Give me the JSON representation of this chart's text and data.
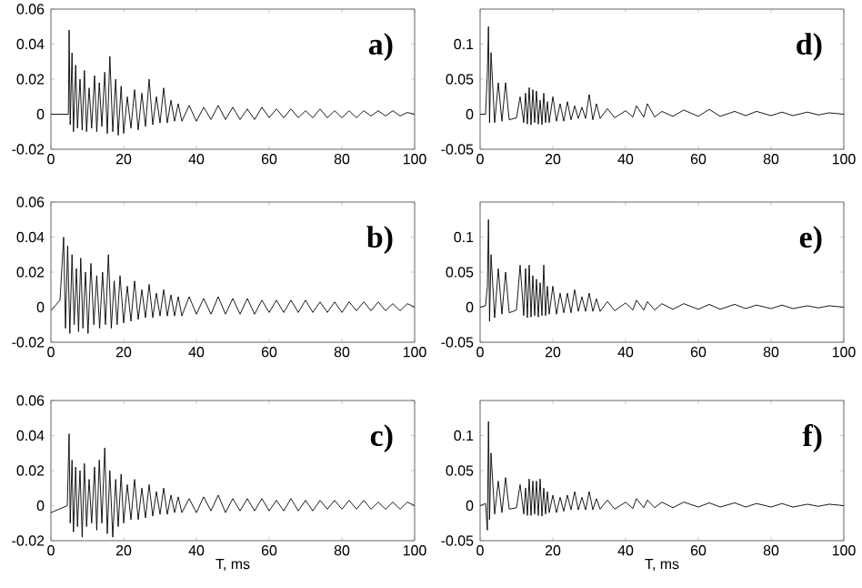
{
  "chart_data": [
    {
      "type": "line",
      "annotations": [
        "a)"
      ],
      "xlim": [
        0,
        100
      ],
      "ylim": [
        -0.02,
        0.06
      ],
      "xticks": [
        0,
        20,
        40,
        60,
        80,
        100
      ],
      "yticks": [
        -0.02,
        0,
        0.02,
        0.04,
        0.06
      ],
      "marker": "none",
      "line_style": "solid",
      "series": [
        {
          "color": "#000000",
          "x": [
            0,
            4.8,
            5,
            5.3,
            5.8,
            6.2,
            6.8,
            7.3,
            8,
            8.6,
            9.2,
            9.8,
            10.5,
            11.2,
            12,
            12.6,
            13.3,
            14,
            14.8,
            15.5,
            16.2,
            17,
            17.8,
            18.5,
            19.3,
            20,
            21,
            22,
            23,
            24,
            25,
            26,
            27,
            28,
            29,
            30,
            31,
            32,
            33,
            34,
            35,
            36,
            38,
            40,
            42,
            44,
            46,
            48,
            50,
            52,
            54,
            56,
            58,
            60,
            62,
            64,
            66,
            68,
            70,
            72,
            74,
            76,
            78,
            80,
            82,
            84,
            86,
            88,
            90,
            92,
            94,
            96,
            98,
            100
          ],
          "values": [
            0,
            0,
            0.048,
            -0.006,
            0.035,
            -0.01,
            0.028,
            -0.008,
            0.02,
            -0.009,
            0.025,
            -0.01,
            0.015,
            -0.008,
            0.022,
            -0.01,
            0.018,
            -0.007,
            0.024,
            -0.011,
            0.033,
            -0.01,
            0.02,
            -0.012,
            0.016,
            -0.011,
            0.01,
            -0.008,
            0.014,
            -0.009,
            0.012,
            -0.007,
            0.02,
            -0.006,
            0.01,
            -0.005,
            0.015,
            -0.005,
            0.008,
            -0.004,
            0.006,
            -0.004,
            0.005,
            -0.004,
            0.004,
            -0.003,
            0.005,
            -0.003,
            0.004,
            -0.003,
            0.003,
            -0.003,
            0.004,
            -0.002,
            0.003,
            -0.002,
            0.003,
            -0.002,
            0.002,
            -0.002,
            0.003,
            -0.002,
            0.002,
            -0.002,
            0.002,
            -0.002,
            0.002,
            -0.001,
            0.002,
            -0.001,
            0.002,
            -0.001,
            0.001,
            0
          ]
        }
      ]
    },
    {
      "type": "line",
      "annotations": [
        "d)"
      ],
      "xlim": [
        0,
        100
      ],
      "ylim": [
        -0.05,
        0.15
      ],
      "xticks": [
        0,
        20,
        40,
        60,
        80,
        100
      ],
      "yticks": [
        -0.05,
        0,
        0.05,
        0.1
      ],
      "marker": "none",
      "line_style": "solid",
      "series": [
        {
          "color": "#000000",
          "x": [
            0,
            1.5,
            2,
            2.3,
            2.6,
            3,
            4,
            5,
            6,
            7,
            8,
            10,
            11,
            12,
            12.5,
            13,
            13.5,
            14,
            14.5,
            15,
            15.5,
            16,
            16.5,
            17,
            17.5,
            18,
            18.5,
            19,
            20,
            21,
            22,
            23,
            24,
            25,
            26,
            27,
            28,
            29,
            30,
            31,
            32,
            33,
            35,
            37,
            40,
            42,
            43,
            45,
            46,
            48,
            50,
            53,
            56,
            60,
            63,
            66,
            70,
            73,
            76,
            80,
            83,
            86,
            90,
            93,
            96,
            100
          ],
          "values": [
            0,
            0,
            0.06,
            0.125,
            -0.012,
            0.088,
            -0.012,
            0.045,
            -0.01,
            0.045,
            -0.008,
            -0.005,
            0.025,
            -0.012,
            0.03,
            -0.014,
            0.038,
            -0.015,
            0.035,
            -0.012,
            0.033,
            -0.014,
            0.02,
            -0.015,
            0.03,
            -0.012,
            0.018,
            -0.012,
            0.025,
            -0.01,
            0.015,
            -0.01,
            0.018,
            -0.008,
            0.012,
            -0.006,
            0.01,
            -0.006,
            0.028,
            -0.008,
            0.015,
            -0.006,
            0.008,
            -0.005,
            0.005,
            -0.004,
            0.012,
            -0.004,
            0.015,
            -0.004,
            0.004,
            -0.003,
            0.006,
            -0.003,
            0.007,
            -0.003,
            0.004,
            -0.002,
            0.004,
            -0.002,
            0.003,
            -0.002,
            0.003,
            -0.001,
            0.002,
            0
          ]
        }
      ]
    },
    {
      "type": "line",
      "annotations": [
        "b)"
      ],
      "xlim": [
        0,
        100
      ],
      "ylim": [
        -0.02,
        0.06
      ],
      "xticks": [
        0,
        20,
        40,
        60,
        80,
        100
      ],
      "yticks": [
        -0.02,
        0,
        0.02,
        0.04,
        0.06
      ],
      "marker": "none",
      "line_style": "solid",
      "series": [
        {
          "color": "#000000",
          "x": [
            0,
            2.5,
            3.5,
            4,
            4.6,
            5.2,
            5.8,
            6.4,
            7,
            7.6,
            8.2,
            8.8,
            9.5,
            10.2,
            11,
            11.8,
            12.6,
            13.4,
            14.2,
            15,
            15.8,
            16.6,
            17.4,
            18.2,
            19,
            20,
            21,
            22,
            23,
            24,
            25,
            26,
            27,
            28,
            29,
            30,
            31,
            32,
            33,
            34,
            35,
            36,
            38,
            40,
            42,
            44,
            46,
            48,
            50,
            52,
            54,
            56,
            58,
            60,
            62,
            64,
            66,
            68,
            70,
            72,
            74,
            76,
            78,
            80,
            82,
            84,
            86,
            88,
            90,
            92,
            94,
            96,
            98,
            100
          ],
          "values": [
            -0.002,
            0.004,
            0.04,
            -0.012,
            0.035,
            -0.015,
            0.03,
            -0.01,
            0.022,
            -0.014,
            0.028,
            -0.012,
            0.02,
            -0.015,
            0.025,
            -0.01,
            0.018,
            -0.012,
            0.02,
            -0.01,
            0.03,
            -0.012,
            0.015,
            -0.01,
            0.018,
            -0.009,
            0.012,
            -0.008,
            0.015,
            -0.007,
            0.01,
            -0.006,
            0.013,
            -0.006,
            0.008,
            -0.005,
            0.01,
            -0.005,
            0.007,
            -0.005,
            0.006,
            -0.005,
            0.006,
            -0.004,
            0.005,
            -0.004,
            0.006,
            -0.004,
            0.005,
            -0.004,
            0.005,
            -0.004,
            0.004,
            -0.003,
            0.004,
            -0.003,
            0.004,
            -0.003,
            0.004,
            -0.003,
            0.003,
            -0.003,
            0.003,
            -0.003,
            0.003,
            -0.002,
            0.003,
            -0.002,
            0.003,
            -0.002,
            0.002,
            -0.002,
            0.002,
            0
          ]
        }
      ]
    },
    {
      "type": "line",
      "annotations": [
        "e)"
      ],
      "xlim": [
        0,
        100
      ],
      "ylim": [
        -0.05,
        0.15
      ],
      "xticks": [
        0,
        20,
        40,
        60,
        80,
        100
      ],
      "yticks": [
        -0.05,
        0,
        0.05,
        0.1
      ],
      "marker": "none",
      "line_style": "solid",
      "series": [
        {
          "color": "#000000",
          "x": [
            0,
            1.5,
            2,
            2.3,
            2.6,
            3,
            4,
            5,
            6,
            7,
            8,
            10,
            11,
            12,
            12.5,
            13,
            13.5,
            14,
            14.5,
            15,
            15.5,
            16,
            16.5,
            17,
            17.5,
            18,
            18.5,
            19,
            20,
            21,
            22,
            23,
            24,
            25,
            26,
            27,
            28,
            29,
            30,
            31,
            32,
            33,
            35,
            37,
            40,
            42,
            43,
            45,
            46,
            48,
            50,
            53,
            56,
            60,
            63,
            66,
            70,
            73,
            76,
            80,
            83,
            86,
            90,
            93,
            96,
            100
          ],
          "values": [
            0,
            0.002,
            0.03,
            0.125,
            -0.02,
            0.075,
            -0.015,
            0.055,
            -0.01,
            0.05,
            -0.008,
            -0.004,
            0.06,
            -0.012,
            0.055,
            -0.015,
            0.06,
            -0.014,
            0.045,
            -0.012,
            0.04,
            -0.014,
            0.035,
            -0.012,
            0.06,
            -0.012,
            0.03,
            -0.01,
            0.03,
            -0.01,
            0.02,
            -0.008,
            0.02,
            -0.008,
            0.025,
            -0.006,
            0.015,
            -0.006,
            0.02,
            -0.006,
            0.012,
            -0.006,
            0.008,
            -0.005,
            0.006,
            -0.004,
            0.01,
            -0.004,
            0.008,
            -0.004,
            0.005,
            -0.003,
            0.005,
            -0.003,
            0.004,
            -0.003,
            0.004,
            -0.002,
            0.003,
            -0.002,
            0.003,
            -0.002,
            0.002,
            -0.001,
            0.002,
            0
          ]
        }
      ]
    },
    {
      "type": "line",
      "annotations": [
        "c)"
      ],
      "xlabel": "T, ms",
      "xlim": [
        0,
        100
      ],
      "ylim": [
        -0.02,
        0.06
      ],
      "xticks": [
        0,
        20,
        40,
        60,
        80,
        100
      ],
      "yticks": [
        -0.02,
        0,
        0.02,
        0.04,
        0.06
      ],
      "marker": "none",
      "line_style": "solid",
      "series": [
        {
          "color": "#000000",
          "x": [
            0,
            4.5,
            5,
            5.3,
            5.8,
            6.2,
            6.8,
            7.3,
            8,
            8.6,
            9.2,
            9.8,
            10.5,
            11.2,
            12,
            12.6,
            13.3,
            14,
            14.8,
            15.5,
            16.2,
            17,
            17.8,
            18.5,
            19.3,
            20,
            21,
            22,
            23,
            24,
            25,
            26,
            27,
            28,
            29,
            30,
            31,
            32,
            33,
            34,
            35,
            36,
            38,
            40,
            42,
            44,
            46,
            48,
            50,
            52,
            54,
            56,
            58,
            60,
            62,
            64,
            66,
            68,
            70,
            72,
            74,
            76,
            78,
            80,
            82,
            84,
            86,
            88,
            90,
            92,
            94,
            96,
            98,
            100
          ],
          "values": [
            -0.004,
            0,
            0.041,
            -0.01,
            0.026,
            -0.015,
            0.022,
            -0.012,
            0.02,
            -0.018,
            0.024,
            -0.012,
            0.015,
            -0.01,
            0.022,
            -0.014,
            0.026,
            -0.01,
            0.033,
            -0.016,
            0.02,
            -0.018,
            0.015,
            -0.012,
            0.018,
            -0.01,
            0.012,
            -0.008,
            0.015,
            -0.008,
            0.01,
            -0.007,
            0.012,
            -0.006,
            0.008,
            -0.005,
            0.01,
            -0.005,
            0.006,
            -0.004,
            0.005,
            -0.004,
            0.004,
            -0.004,
            0.005,
            -0.003,
            0.006,
            -0.004,
            0.004,
            -0.003,
            0.004,
            -0.003,
            0.004,
            -0.003,
            0.003,
            -0.003,
            0.004,
            -0.003,
            0.003,
            -0.003,
            0.003,
            -0.002,
            0.003,
            -0.002,
            0.003,
            -0.002,
            0.003,
            -0.002,
            0.002,
            -0.002,
            0.002,
            -0.002,
            0.002,
            0
          ]
        }
      ]
    },
    {
      "type": "line",
      "annotations": [
        "f)"
      ],
      "xlabel": "T, ms",
      "xlim": [
        0,
        100
      ],
      "ylim": [
        -0.05,
        0.15
      ],
      "xticks": [
        0,
        20,
        40,
        60,
        80,
        100
      ],
      "yticks": [
        -0.05,
        0,
        0.05,
        0.1
      ],
      "marker": "none",
      "line_style": "solid",
      "series": [
        {
          "color": "#000000",
          "x": [
            0,
            1.5,
            2,
            2.3,
            2.6,
            3,
            4,
            5,
            6,
            7,
            8,
            10,
            11,
            12,
            12.5,
            13,
            13.5,
            14,
            14.5,
            15,
            15.5,
            16,
            16.5,
            17,
            17.5,
            18,
            18.5,
            19,
            20,
            21,
            22,
            23,
            24,
            25,
            26,
            27,
            28,
            29,
            30,
            31,
            32,
            33,
            35,
            37,
            40,
            42,
            43,
            45,
            46,
            48,
            50,
            53,
            56,
            60,
            63,
            66,
            70,
            73,
            76,
            80,
            83,
            86,
            90,
            93,
            96,
            100
          ],
          "values": [
            0,
            0.003,
            -0.035,
            0.12,
            -0.02,
            0.075,
            -0.012,
            0.035,
            -0.01,
            0.04,
            -0.005,
            -0.003,
            0.03,
            -0.012,
            0.025,
            -0.014,
            0.038,
            -0.014,
            0.035,
            -0.012,
            0.035,
            -0.014,
            0.038,
            -0.015,
            0.025,
            -0.012,
            0.02,
            -0.01,
            0.015,
            -0.01,
            0.012,
            -0.008,
            0.015,
            -0.006,
            0.02,
            -0.006,
            0.012,
            -0.006,
            0.02,
            -0.006,
            0.01,
            -0.005,
            0.008,
            -0.005,
            0.005,
            -0.004,
            0.01,
            -0.003,
            0.008,
            -0.003,
            0.005,
            -0.003,
            0.005,
            -0.002,
            0.004,
            -0.002,
            0.004,
            -0.002,
            0.003,
            -0.002,
            0.003,
            -0.002,
            0.002,
            -0.001,
            0.002,
            0
          ]
        }
      ]
    }
  ]
}
